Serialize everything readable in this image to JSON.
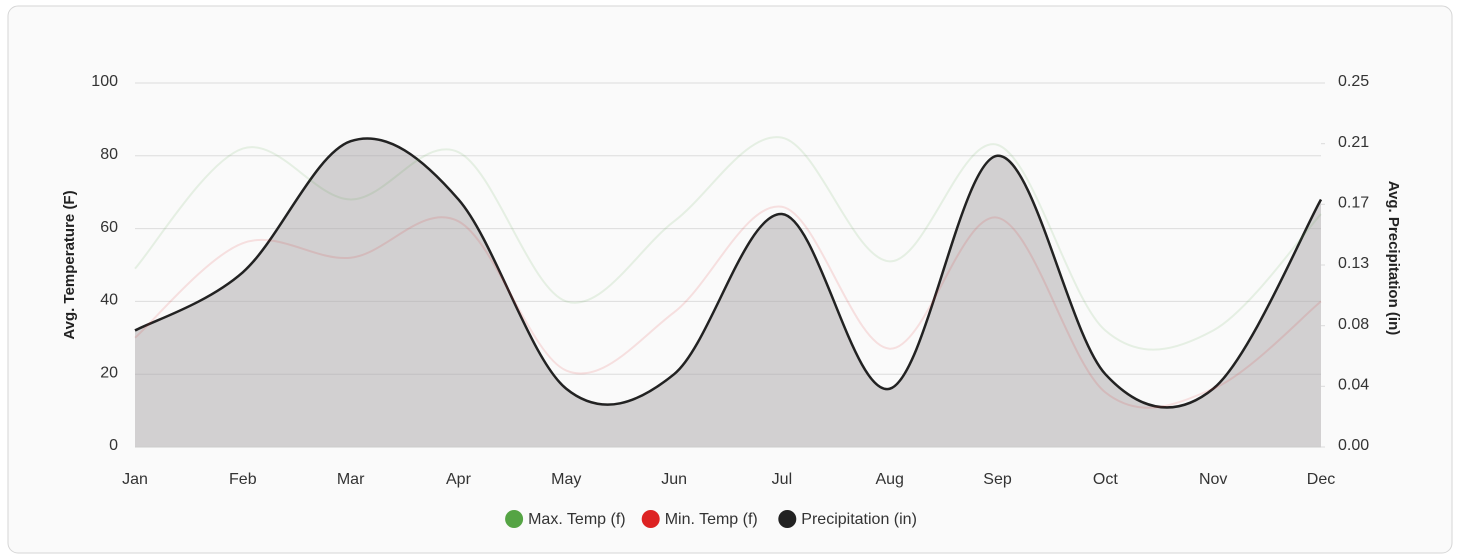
{
  "chart_data": {
    "type": "line",
    "categories": [
      "Jan",
      "Feb",
      "Mar",
      "Apr",
      "May",
      "Jun",
      "Jul",
      "Aug",
      "Sep",
      "Oct",
      "Nov",
      "Dec"
    ],
    "ylabel": "Avg. Temperature (F)",
    "y2label": "Avg. Precipitation (in)",
    "ylim": [
      0,
      100
    ],
    "yticks": [
      0,
      20,
      40,
      60,
      80,
      100
    ],
    "y2lim": [
      0,
      0.25
    ],
    "y2ticks": [
      {
        "value": 0,
        "label": "0.00"
      },
      {
        "value": 0.041667,
        "label": "0.04"
      },
      {
        "value": 0.083333,
        "label": "0.08"
      },
      {
        "value": 0.125,
        "label": "0.13"
      },
      {
        "value": 0.166667,
        "label": "0.17"
      },
      {
        "value": 0.208333,
        "label": "0.21"
      },
      {
        "value": 0.25,
        "label": "0.25"
      }
    ],
    "grid": true,
    "legend": "bottom",
    "series": [
      {
        "name": "Max. Temp (f)",
        "color": "#55a444",
        "values": [
          49,
          82,
          68,
          81,
          40,
          62,
          85,
          51,
          83,
          32,
          32,
          64
        ]
      },
      {
        "name": "Min. Temp (f)",
        "color": "#dd2222",
        "values": [
          30,
          56,
          52,
          62,
          21,
          37,
          66,
          27,
          63,
          15,
          16,
          40
        ]
      },
      {
        "name": "Precipitation (in)",
        "color": "#222222",
        "axis": "y2",
        "values": [
          0.08,
          0.12,
          0.21,
          0.17,
          0.04,
          0.05,
          0.16,
          0.04,
          0.2,
          0.05,
          0.04,
          0.17
        ]
      }
    ]
  }
}
